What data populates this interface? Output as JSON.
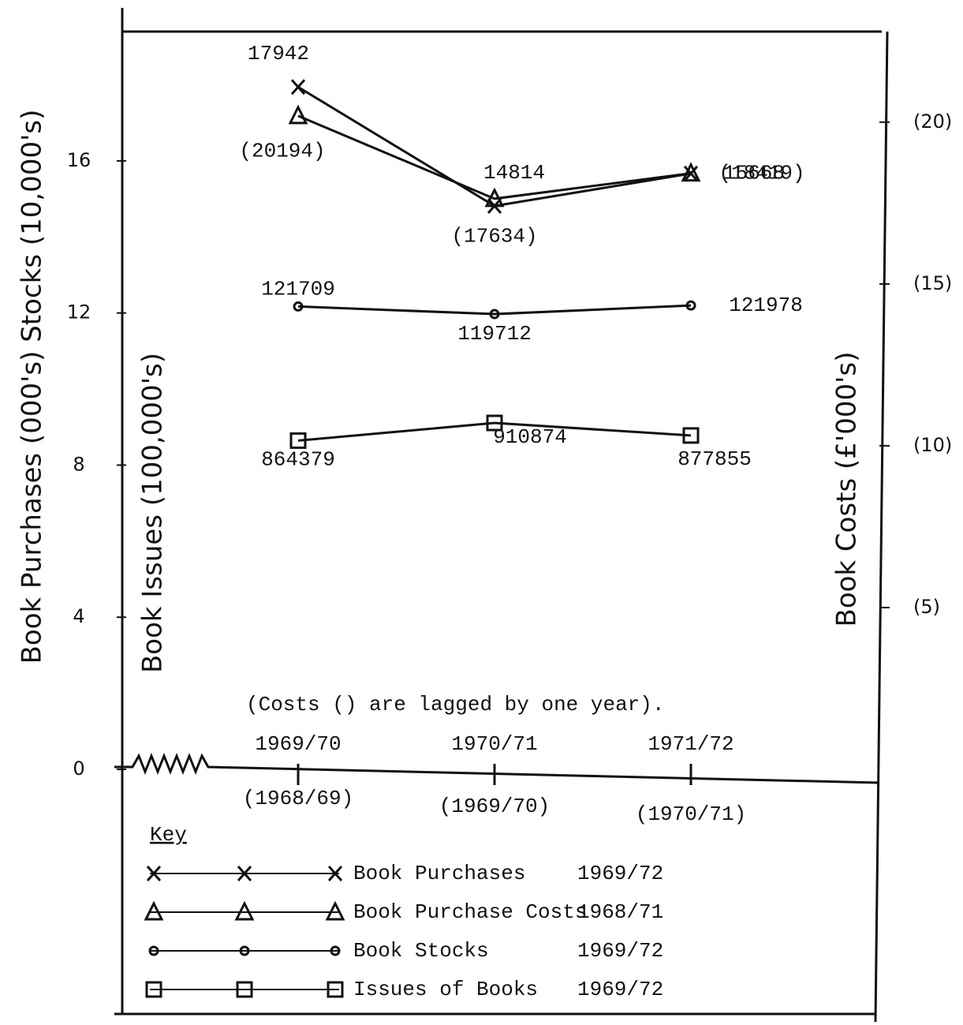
{
  "chart_data": {
    "type": "line",
    "y_label": "Book Purchases (000's) Stocks (10,000's)",
    "y_label_inner": "Book Issues (100,000's)",
    "y2_label": "Book Costs (£'000's)",
    "annotation": "(Costs () are lagged by one year).",
    "categories": [
      "1969/70",
      "1970/71",
      "1971/72"
    ],
    "cost_categories": [
      "(1968/69)",
      "(1969/70)",
      "(1970/71)"
    ],
    "ylim": [
      0,
      19.4
    ],
    "yticks": [
      0,
      4,
      8,
      12,
      16
    ],
    "y2lim": [
      0,
      22.8
    ],
    "y2ticks": [
      {
        "value": 5,
        "label": "(5)"
      },
      {
        "value": 10,
        "label": "(10)"
      },
      {
        "value": 15,
        "label": "(15)"
      },
      {
        "value": 20,
        "label": "(20)"
      }
    ],
    "legend_title": "Key",
    "series": [
      {
        "name": "Book Purchases",
        "period": "1969/72",
        "marker": "x",
        "color": "#111",
        "values": [
          17.942,
          14.814,
          15.668
        ],
        "value_labels": [
          "17942",
          "14814",
          "15668"
        ]
      },
      {
        "name": "Book Purchase Costs",
        "period": "1968/71",
        "marker": "triangle",
        "color": "#111",
        "axis": "y2",
        "values": [
          20.194,
          17.634,
          18.419
        ],
        "value_labels": [
          "(20194)",
          "(17634)",
          "(18419)"
        ]
      },
      {
        "name": "Book Stocks",
        "period": "1969/72",
        "marker": "circle",
        "color": "#111",
        "values": [
          12.1709,
          11.9712,
          12.1978
        ],
        "value_labels": [
          "121709",
          "119712",
          "121978"
        ]
      },
      {
        "name": "Issues of Books",
        "period": "1969/72",
        "marker": "square",
        "color": "#111",
        "values": [
          8.64379,
          9.10874,
          8.77855
        ],
        "value_labels": [
          "864379",
          "910874",
          "877855"
        ]
      }
    ]
  }
}
